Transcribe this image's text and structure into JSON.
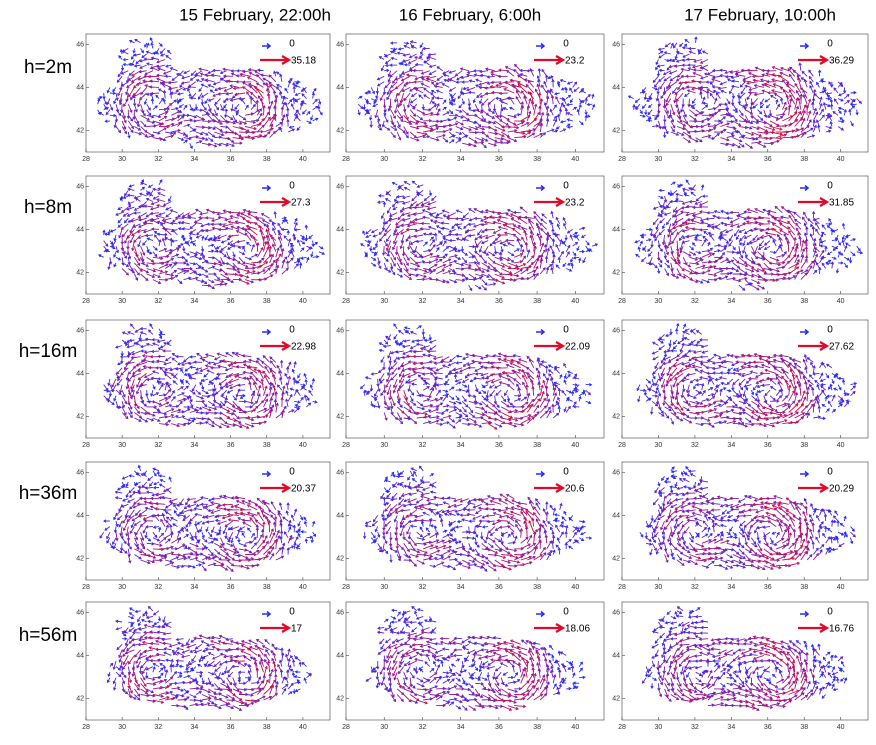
{
  "column_titles": [
    "15 February, 22:00h",
    "16 February, 6:00h",
    "17 February, 10:00h"
  ],
  "row_labels": [
    "h=2m",
    "h=8m",
    "h=16m",
    "h=36m",
    "h=56m"
  ],
  "chart_data": [
    {
      "type": "quiver",
      "xlim": [
        28,
        41.5
      ],
      "xticks": [
        28,
        30,
        32,
        34,
        36,
        38,
        40
      ],
      "ylim": [
        41,
        46.5
      ],
      "yticks": [
        42,
        44,
        46
      ],
      "key_labels": [
        0,
        35.18
      ]
    },
    {
      "type": "quiver",
      "xlim": [
        28,
        41.5
      ],
      "xticks": [
        28,
        30,
        32,
        34,
        36,
        38,
        40
      ],
      "ylim": [
        41,
        46.5
      ],
      "yticks": [
        42,
        44,
        46
      ],
      "key_labels": [
        0,
        23.2
      ]
    },
    {
      "type": "quiver",
      "xlim": [
        28,
        41.5
      ],
      "xticks": [
        28,
        30,
        32,
        34,
        36,
        38,
        40
      ],
      "ylim": [
        41,
        46.5
      ],
      "yticks": [
        42,
        44,
        46
      ],
      "key_labels": [
        0,
        36.29
      ]
    },
    {
      "type": "quiver",
      "xlim": [
        28,
        41.5
      ],
      "xticks": [
        28,
        30,
        32,
        34,
        36,
        38,
        40
      ],
      "ylim": [
        41,
        46.5
      ],
      "yticks": [
        42,
        44,
        46
      ],
      "key_labels": [
        0,
        27.3
      ]
    },
    {
      "type": "quiver",
      "xlim": [
        28,
        41.5
      ],
      "xticks": [
        28,
        30,
        32,
        34,
        36,
        38,
        40
      ],
      "ylim": [
        41,
        46.5
      ],
      "yticks": [
        42,
        44,
        46
      ],
      "key_labels": [
        0,
        23.2
      ]
    },
    {
      "type": "quiver",
      "xlim": [
        28,
        41.5
      ],
      "xticks": [
        28,
        30,
        32,
        34,
        36,
        38,
        40
      ],
      "ylim": [
        41,
        46.5
      ],
      "yticks": [
        42,
        44,
        46
      ],
      "key_labels": [
        0,
        31.85
      ]
    },
    {
      "type": "quiver",
      "xlim": [
        28,
        41.5
      ],
      "xticks": [
        28,
        30,
        32,
        34,
        36,
        38,
        40
      ],
      "ylim": [
        41,
        46.5
      ],
      "yticks": [
        42,
        44,
        46
      ],
      "key_labels": [
        0,
        22.98
      ]
    },
    {
      "type": "quiver",
      "xlim": [
        28,
        41.5
      ],
      "xticks": [
        28,
        30,
        32,
        34,
        36,
        38,
        40
      ],
      "ylim": [
        41,
        46.5
      ],
      "yticks": [
        42,
        44,
        46
      ],
      "key_labels": [
        0,
        22.09
      ]
    },
    {
      "type": "quiver",
      "xlim": [
        28,
        41.5
      ],
      "xticks": [
        28,
        30,
        32,
        34,
        36,
        38,
        40
      ],
      "ylim": [
        41,
        46.5
      ],
      "yticks": [
        42,
        44,
        46
      ],
      "key_labels": [
        0,
        27.62
      ]
    },
    {
      "type": "quiver",
      "xlim": [
        28,
        41.5
      ],
      "xticks": [
        28,
        30,
        32,
        34,
        36,
        38,
        40
      ],
      "ylim": [
        41,
        46.5
      ],
      "yticks": [
        42,
        44,
        46
      ],
      "key_labels": [
        0,
        20.37
      ]
    },
    {
      "type": "quiver",
      "xlim": [
        28,
        41.5
      ],
      "xticks": [
        28,
        30,
        32,
        34,
        36,
        38,
        40
      ],
      "ylim": [
        41,
        46.5
      ],
      "yticks": [
        42,
        44,
        46
      ],
      "key_labels": [
        0,
        20.6
      ]
    },
    {
      "type": "quiver",
      "xlim": [
        28,
        41.5
      ],
      "xticks": [
        28,
        30,
        32,
        34,
        36,
        38,
        40
      ],
      "ylim": [
        41,
        46.5
      ],
      "yticks": [
        42,
        44,
        46
      ],
      "key_labels": [
        0,
        20.29
      ]
    },
    {
      "type": "quiver",
      "xlim": [
        28,
        41.5
      ],
      "xticks": [
        28,
        30,
        32,
        34,
        36,
        38,
        40
      ],
      "ylim": [
        41,
        46.5
      ],
      "yticks": [
        42,
        44,
        46
      ],
      "key_labels": [
        0,
        17
      ]
    },
    {
      "type": "quiver",
      "xlim": [
        28,
        41.5
      ],
      "xticks": [
        28,
        30,
        32,
        34,
        36,
        38,
        40
      ],
      "ylim": [
        41,
        46.5
      ],
      "yticks": [
        42,
        44,
        46
      ],
      "key_labels": [
        0,
        18.06
      ]
    },
    {
      "type": "quiver",
      "xlim": [
        28,
        41.5
      ],
      "xticks": [
        28,
        30,
        32,
        34,
        36,
        38,
        40
      ],
      "ylim": [
        41,
        46.5
      ],
      "yticks": [
        42,
        44,
        46
      ],
      "key_labels": [
        0,
        16.76
      ]
    }
  ]
}
